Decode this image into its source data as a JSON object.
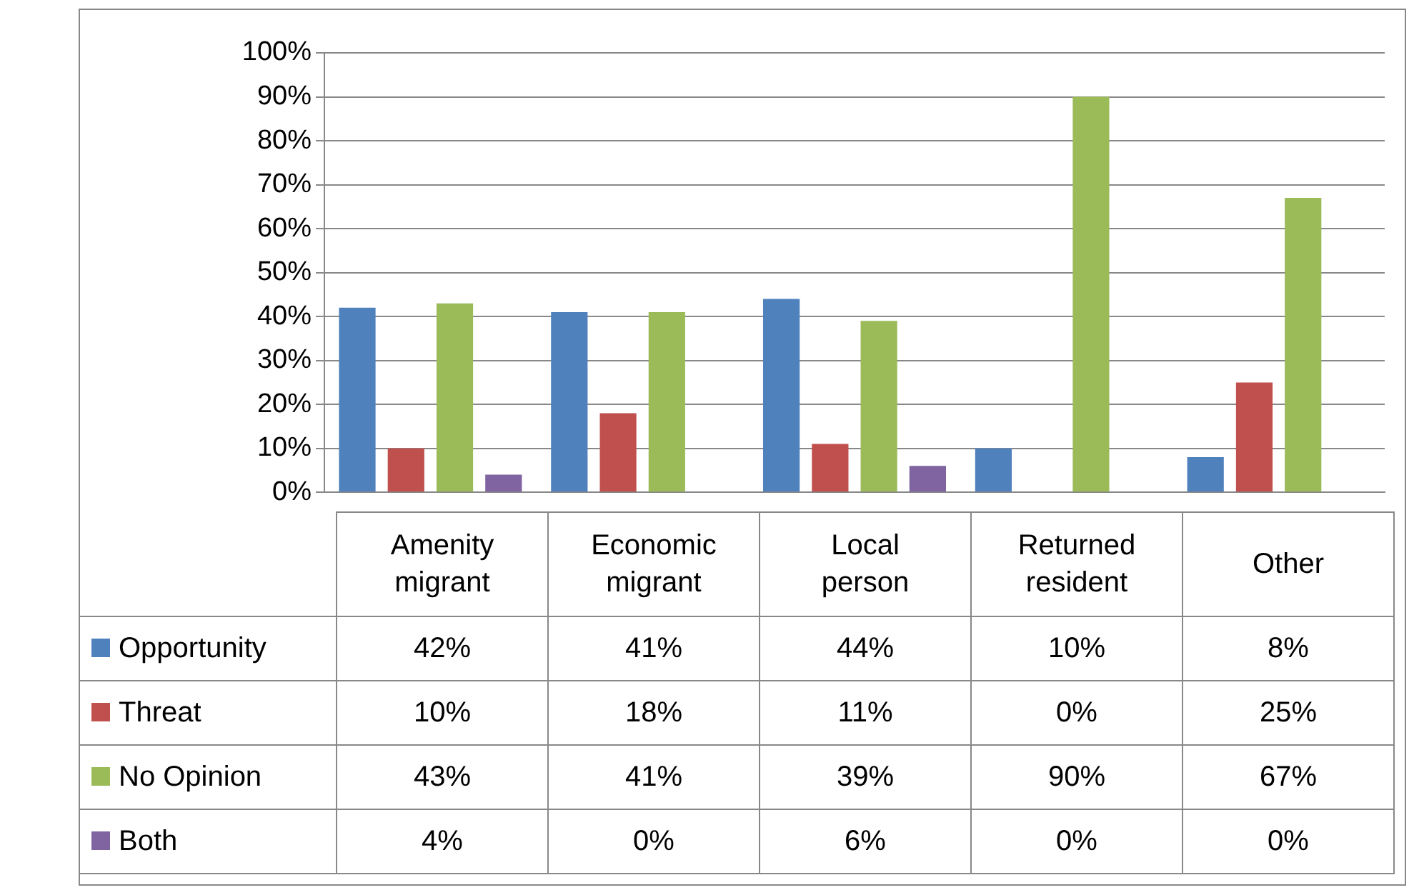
{
  "chart_data": {
    "type": "bar",
    "categories": [
      "Amenity migrant",
      "Economic migrant",
      "Local person",
      "Returned resident",
      "Other"
    ],
    "series": [
      {
        "name": "Opportunity",
        "color": "#4f81bd",
        "values": [
          42,
          41,
          44,
          10,
          8
        ],
        "value_labels": [
          "42%",
          "41%",
          "44%",
          "10%",
          "8%"
        ]
      },
      {
        "name": "Threat",
        "color": "#c0504d",
        "values": [
          10,
          18,
          11,
          0,
          25
        ],
        "value_labels": [
          "10%",
          "18%",
          "11%",
          "0%",
          "25%"
        ]
      },
      {
        "name": "No Opinion",
        "color": "#9bbb59",
        "values": [
          43,
          41,
          39,
          90,
          67
        ],
        "value_labels": [
          "43%",
          "41%",
          "39%",
          "90%",
          "67%"
        ]
      },
      {
        "name": "Both",
        "color": "#8064a2",
        "values": [
          4,
          0,
          6,
          0,
          0
        ],
        "value_labels": [
          "4%",
          "0%",
          "6%",
          "0%",
          "0%"
        ]
      }
    ],
    "ylim": [
      0,
      100
    ],
    "yticks": [
      {
        "value": 0,
        "label": "0%"
      },
      {
        "value": 10,
        "label": "10%"
      },
      {
        "value": 20,
        "label": "20%"
      },
      {
        "value": 30,
        "label": "30%"
      },
      {
        "value": 40,
        "label": "40%"
      },
      {
        "value": 50,
        "label": "50%"
      },
      {
        "value": 60,
        "label": "60%"
      },
      {
        "value": 70,
        "label": "70%"
      },
      {
        "value": 80,
        "label": "80%"
      },
      {
        "value": 90,
        "label": "90%"
      },
      {
        "value": 100,
        "label": "100%"
      }
    ],
    "grid": "y",
    "legend": "bottom"
  }
}
